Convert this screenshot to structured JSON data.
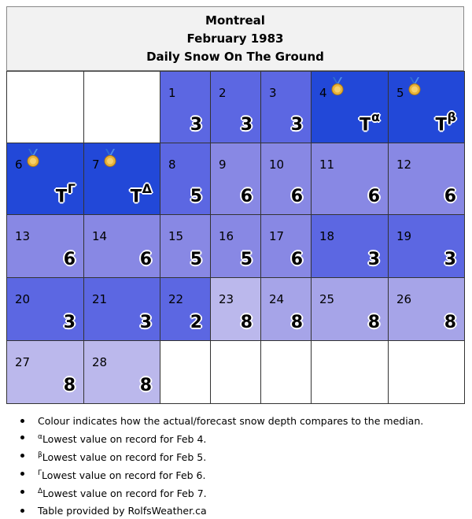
{
  "header": {
    "city": "Montreal",
    "month": "February 1983",
    "subtitle": "Daily Snow On The Ground"
  },
  "colors": {
    "dark": "#2248d8",
    "mid": "#5c67e2",
    "light": "#8888e4",
    "lighter": "#a6a4e8",
    "lightest": "#bbb8ec"
  },
  "weeks": [
    [
      {
        "empty": true
      },
      {
        "empty": true
      },
      {
        "day": "1",
        "value": "3",
        "mark": "",
        "color": "mid",
        "medal": false
      },
      {
        "day": "2",
        "value": "3",
        "mark": "",
        "color": "mid",
        "medal": false
      },
      {
        "day": "3",
        "value": "3",
        "mark": "",
        "color": "mid",
        "medal": false
      },
      {
        "day": "4",
        "value": "T",
        "mark": "α",
        "color": "dark",
        "medal": true
      },
      {
        "day": "5",
        "value": "T",
        "mark": "β",
        "color": "dark",
        "medal": true
      }
    ],
    [
      {
        "day": "6",
        "value": "T",
        "mark": "Γ",
        "color": "dark",
        "medal": true
      },
      {
        "day": "7",
        "value": "T",
        "mark": "Δ",
        "color": "dark",
        "medal": true
      },
      {
        "day": "8",
        "value": "5",
        "mark": "",
        "color": "mid",
        "medal": false
      },
      {
        "day": "9",
        "value": "6",
        "mark": "",
        "color": "light",
        "medal": false
      },
      {
        "day": "10",
        "value": "6",
        "mark": "",
        "color": "light",
        "medal": false
      },
      {
        "day": "11",
        "value": "6",
        "mark": "",
        "color": "light",
        "medal": false
      },
      {
        "day": "12",
        "value": "6",
        "mark": "",
        "color": "light",
        "medal": false
      }
    ],
    [
      {
        "day": "13",
        "value": "6",
        "mark": "",
        "color": "light",
        "medal": false
      },
      {
        "day": "14",
        "value": "6",
        "mark": "",
        "color": "light",
        "medal": false
      },
      {
        "day": "15",
        "value": "5",
        "mark": "",
        "color": "light",
        "medal": false
      },
      {
        "day": "16",
        "value": "5",
        "mark": "",
        "color": "light",
        "medal": false
      },
      {
        "day": "17",
        "value": "6",
        "mark": "",
        "color": "light",
        "medal": false
      },
      {
        "day": "18",
        "value": "3",
        "mark": "",
        "color": "mid",
        "medal": false
      },
      {
        "day": "19",
        "value": "3",
        "mark": "",
        "color": "mid",
        "medal": false
      }
    ],
    [
      {
        "day": "20",
        "value": "3",
        "mark": "",
        "color": "mid",
        "medal": false
      },
      {
        "day": "21",
        "value": "3",
        "mark": "",
        "color": "mid",
        "medal": false
      },
      {
        "day": "22",
        "value": "2",
        "mark": "",
        "color": "mid",
        "medal": false
      },
      {
        "day": "23",
        "value": "8",
        "mark": "",
        "color": "lightest",
        "medal": false
      },
      {
        "day": "24",
        "value": "8",
        "mark": "",
        "color": "lighter",
        "medal": false
      },
      {
        "day": "25",
        "value": "8",
        "mark": "",
        "color": "lighter",
        "medal": false
      },
      {
        "day": "26",
        "value": "8",
        "mark": "",
        "color": "lighter",
        "medal": false
      }
    ],
    [
      {
        "day": "27",
        "value": "8",
        "mark": "",
        "color": "lightest",
        "medal": false
      },
      {
        "day": "28",
        "value": "8",
        "mark": "",
        "color": "lightest",
        "medal": false
      },
      {
        "empty": true
      },
      {
        "empty": true
      },
      {
        "empty": true
      },
      {
        "empty": true
      },
      {
        "empty": true
      }
    ]
  ],
  "notes": [
    {
      "mark": "",
      "text": "Colour indicates how the actual/forecast snow depth compares to the median."
    },
    {
      "mark": "α",
      "text": "Lowest value on record for Feb 4."
    },
    {
      "mark": "β",
      "text": "Lowest value on record for Feb 5."
    },
    {
      "mark": "Γ",
      "text": "Lowest value on record for Feb 6."
    },
    {
      "mark": "Δ",
      "text": "Lowest value on record for Feb 7."
    },
    {
      "mark": "",
      "text": "Table provided by RolfsWeather.ca"
    }
  ]
}
